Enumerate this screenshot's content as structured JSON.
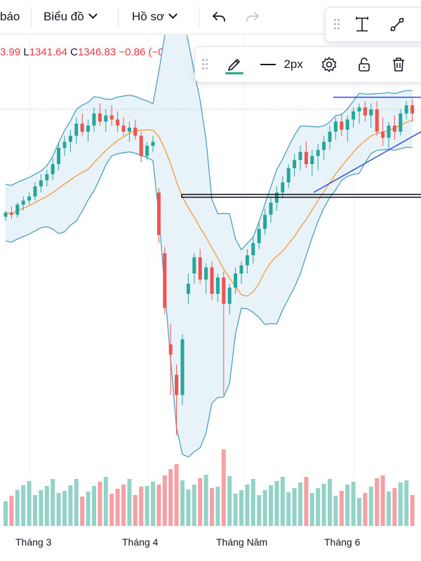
{
  "toolbar": {
    "alerts_label": "báo",
    "chart_menu_label": "Biểu đồ",
    "profile_menu_label": "Hồ sơ",
    "undo_icon": "undo-icon",
    "redo_icon": "redo-icon"
  },
  "drawing_tools": {
    "icons": [
      "text-cursor-icon",
      "trend-line-icon"
    ]
  },
  "line_toolbar": {
    "pencil_icon": "pencil-icon",
    "pencil_color": "#22ab94",
    "width_label": "2px",
    "icons": [
      "settings-icon",
      "unlock-icon",
      "trash-icon"
    ]
  },
  "ohlc": {
    "prev_value": "3.99",
    "low_label": "L",
    "low_value": "1341.64",
    "close_label": "C",
    "close_value": "1346.83",
    "change": "−0.86 (−0."
  },
  "x_axis": {
    "labels": [
      "Tháng 3",
      "Tháng 4",
      "Tháng Năm",
      "Tháng 6"
    ]
  },
  "colors": {
    "up": "#26a69a",
    "down": "#ef5350",
    "vol_up": "#93d2c6",
    "vol_down": "#f5a0a4",
    "bollinger": "#4da0c0",
    "bollinger_fill": "#e8f3f9",
    "ma": "#f0a04b",
    "trendline": "#3d55d8"
  },
  "chart_data": {
    "type": "candlestick",
    "x_labels": [
      "Tháng 3",
      "Tháng 4",
      "Tháng Năm",
      "Tháng 6"
    ],
    "series": [
      {
        "kind": "ohlc",
        "values": [
          [
            1216,
            1222,
            1212,
            1220
          ],
          [
            1220,
            1226,
            1214,
            1218
          ],
          [
            1218,
            1230,
            1215,
            1228
          ],
          [
            1228,
            1236,
            1222,
            1232
          ],
          [
            1232,
            1240,
            1228,
            1236
          ],
          [
            1236,
            1250,
            1232,
            1246
          ],
          [
            1246,
            1258,
            1240,
            1252
          ],
          [
            1252,
            1262,
            1246,
            1258
          ],
          [
            1258,
            1274,
            1252,
            1268
          ],
          [
            1268,
            1290,
            1262,
            1284
          ],
          [
            1284,
            1296,
            1276,
            1290
          ],
          [
            1290,
            1302,
            1280,
            1296
          ],
          [
            1296,
            1314,
            1288,
            1308
          ],
          [
            1308,
            1318,
            1296,
            1300
          ],
          [
            1300,
            1312,
            1290,
            1306
          ],
          [
            1306,
            1324,
            1300,
            1318
          ],
          [
            1318,
            1328,
            1306,
            1310
          ],
          [
            1310,
            1322,
            1300,
            1316
          ],
          [
            1316,
            1326,
            1306,
            1312
          ],
          [
            1312,
            1320,
            1300,
            1306
          ],
          [
            1306,
            1314,
            1296,
            1300
          ],
          [
            1300,
            1310,
            1290,
            1304
          ],
          [
            1304,
            1312,
            1292,
            1296
          ],
          [
            1296,
            1300,
            1270,
            1276
          ],
          [
            1276,
            1290,
            1272,
            1286
          ],
          [
            1286,
            1296,
            1280,
            1290
          ],
          [
            1240,
            1244,
            1190,
            1198
          ],
          [
            1180,
            1186,
            1120,
            1126
          ],
          [
            1090,
            1110,
            1040,
            1080
          ],
          [
            1060,
            1070,
            1000,
            1040
          ],
          [
            1040,
            1100,
            1030,
            1095
          ],
          [
            1140,
            1160,
            1130,
            1150
          ],
          [
            1160,
            1180,
            1150,
            1176
          ],
          [
            1176,
            1184,
            1150,
            1154
          ],
          [
            1154,
            1170,
            1140,
            1166
          ],
          [
            1166,
            1172,
            1134,
            1140
          ],
          [
            1140,
            1160,
            1132,
            1156
          ],
          [
            1156,
            1162,
            1040,
            1130
          ],
          [
            1130,
            1150,
            1120,
            1146
          ],
          [
            1146,
            1166,
            1140,
            1160
          ],
          [
            1160,
            1172,
            1150,
            1168
          ],
          [
            1168,
            1184,
            1160,
            1178
          ],
          [
            1178,
            1196,
            1170,
            1190
          ],
          [
            1190,
            1210,
            1184,
            1204
          ],
          [
            1204,
            1224,
            1198,
            1218
          ],
          [
            1218,
            1236,
            1210,
            1230
          ],
          [
            1230,
            1246,
            1222,
            1240
          ],
          [
            1240,
            1256,
            1234,
            1250
          ],
          [
            1250,
            1268,
            1244,
            1264
          ],
          [
            1264,
            1278,
            1256,
            1272
          ],
          [
            1272,
            1286,
            1262,
            1280
          ],
          [
            1280,
            1290,
            1264,
            1268
          ],
          [
            1268,
            1282,
            1256,
            1276
          ],
          [
            1276,
            1288,
            1262,
            1282
          ],
          [
            1282,
            1296,
            1272,
            1290
          ],
          [
            1290,
            1306,
            1282,
            1300
          ],
          [
            1300,
            1314,
            1292,
            1310
          ],
          [
            1310,
            1318,
            1296,
            1302
          ],
          [
            1302,
            1316,
            1290,
            1312
          ],
          [
            1312,
            1324,
            1304,
            1320
          ],
          [
            1320,
            1328,
            1308,
            1324
          ],
          [
            1324,
            1330,
            1310,
            1316
          ],
          [
            1316,
            1328,
            1304,
            1322
          ],
          [
            1322,
            1330,
            1296,
            1300
          ],
          [
            1300,
            1314,
            1286,
            1294
          ],
          [
            1294,
            1310,
            1282,
            1306
          ],
          [
            1306,
            1316,
            1292,
            1300
          ],
          [
            1300,
            1322,
            1296,
            1318
          ],
          [
            1318,
            1330,
            1312,
            1326
          ],
          [
            1326,
            1332,
            1310,
            1318
          ]
        ]
      },
      {
        "kind": "volume"
      }
    ]
  }
}
